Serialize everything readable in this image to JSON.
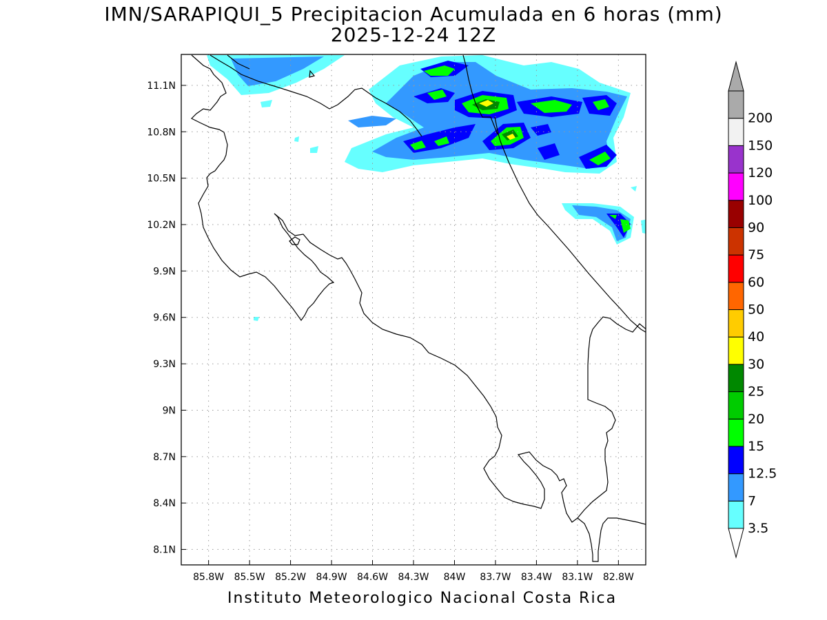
{
  "title": {
    "line1": "IMN/SARAPIQUI_5 Precipitacion Acumulada en 6 horas (mm)",
    "line2": "2025-12-24 12Z"
  },
  "footer": "Instituto Meteorologico Nacional Costa Rica",
  "map": {
    "lon_range": [
      -86.0,
      -82.6
    ],
    "lat_range": [
      8.0,
      11.3
    ],
    "x_ticks": [
      {
        "lon": -85.8,
        "label": "85.8W"
      },
      {
        "lon": -85.5,
        "label": "85.5W"
      },
      {
        "lon": -85.2,
        "label": "85.2W"
      },
      {
        "lon": -84.9,
        "label": "84.9W"
      },
      {
        "lon": -84.6,
        "label": "84.6W"
      },
      {
        "lon": -84.3,
        "label": "84.3W"
      },
      {
        "lon": -84.0,
        "label": "84W"
      },
      {
        "lon": -83.7,
        "label": "83.7W"
      },
      {
        "lon": -83.4,
        "label": "83.4W"
      },
      {
        "lon": -83.1,
        "label": "83.1W"
      },
      {
        "lon": -82.8,
        "label": "82.8W"
      }
    ],
    "y_ticks": [
      {
        "lat": 8.1,
        "label": "8.1N"
      },
      {
        "lat": 8.4,
        "label": "8.4N"
      },
      {
        "lat": 8.7,
        "label": "8.7N"
      },
      {
        "lat": 9.0,
        "label": "9N"
      },
      {
        "lat": 9.3,
        "label": "9.3N"
      },
      {
        "lat": 9.6,
        "label": "9.6N"
      },
      {
        "lat": 9.9,
        "label": "9.9N"
      },
      {
        "lat": 10.2,
        "label": "10.2N"
      },
      {
        "lat": 10.5,
        "label": "10.5N"
      },
      {
        "lat": 10.8,
        "label": "10.8N"
      },
      {
        "lat": 11.1,
        "label": "11.1N"
      }
    ],
    "grid": true
  },
  "colorbar": {
    "levels": [
      {
        "label": "3.5",
        "color": "#66ffff"
      },
      {
        "label": "7",
        "color": "#3399ff"
      },
      {
        "label": "12.5",
        "color": "#0000ff"
      },
      {
        "label": "15",
        "color": "#00ff00"
      },
      {
        "label": "20",
        "color": "#00cc00"
      },
      {
        "label": "25",
        "color": "#008800"
      },
      {
        "label": "30",
        "color": "#ffff00"
      },
      {
        "label": "40",
        "color": "#ffcc00"
      },
      {
        "label": "50",
        "color": "#ff6600"
      },
      {
        "label": "60",
        "color": "#ff0000"
      },
      {
        "label": "75",
        "color": "#cc3300"
      },
      {
        "label": "90",
        "color": "#990000"
      },
      {
        "label": "100",
        "color": "#ff00ff"
      },
      {
        "label": "120",
        "color": "#9933cc"
      },
      {
        "label": "150",
        "color": "#f2f2f2"
      },
      {
        "label": "200",
        "color": "#aaaaaa"
      }
    ]
  }
}
